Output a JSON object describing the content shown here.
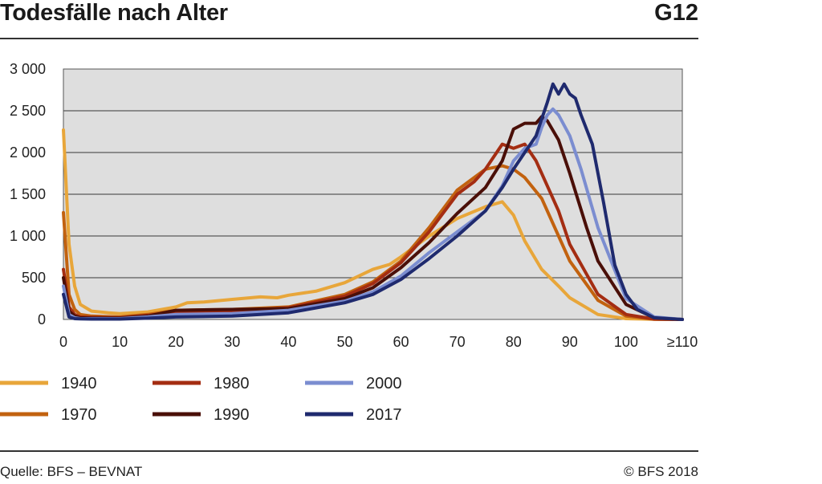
{
  "header": {
    "title": "Todesfälle nach Alter",
    "code": "G12"
  },
  "footer": {
    "source": "Quelle: BFS – BEVNAT",
    "copyright": "© BFS 2018"
  },
  "chart_data": {
    "type": "line",
    "title": "Todesfälle nach Alter",
    "xlabel": "",
    "ylabel": "",
    "xlim": [
      0,
      110
    ],
    "ylim": [
      0,
      3000
    ],
    "grid": true,
    "legend_position": "bottom",
    "x_ticks": [
      "0",
      "10",
      "20",
      "30",
      "40",
      "50",
      "60",
      "70",
      "80",
      "90",
      "100",
      "≥110"
    ],
    "y_ticks": [
      "0",
      "500",
      "1 000",
      "1 500",
      "2 000",
      "2 500",
      "3 000"
    ],
    "series": [
      {
        "name": "1940",
        "color": "#e8a63a",
        "x": [
          0,
          1,
          2,
          3,
          5,
          8,
          10,
          15,
          20,
          22,
          25,
          30,
          35,
          38,
          40,
          45,
          50,
          55,
          58,
          60,
          65,
          70,
          75,
          78,
          80,
          82,
          85,
          88,
          90,
          95,
          100,
          105,
          110
        ],
        "y": [
          2270,
          900,
          400,
          180,
          100,
          80,
          70,
          90,
          150,
          200,
          210,
          240,
          270,
          260,
          290,
          340,
          440,
          600,
          660,
          750,
          1000,
          1210,
          1350,
          1410,
          1250,
          940,
          600,
          400,
          260,
          60,
          10,
          2,
          0
        ]
      },
      {
        "name": "1970",
        "color": "#c2620f",
        "x": [
          0,
          1,
          2,
          3,
          5,
          10,
          15,
          20,
          30,
          40,
          50,
          55,
          60,
          65,
          70,
          75,
          78,
          80,
          82,
          85,
          88,
          90,
          95,
          100,
          105,
          110
        ],
        "y": [
          1280,
          300,
          120,
          60,
          40,
          30,
          60,
          110,
          120,
          150,
          300,
          450,
          700,
          1100,
          1550,
          1800,
          1840,
          1800,
          1700,
          1450,
          1000,
          700,
          230,
          40,
          3,
          0
        ]
      },
      {
        "name": "1980",
        "color": "#a42d12",
        "x": [
          0,
          1,
          2,
          3,
          5,
          10,
          15,
          20,
          30,
          40,
          50,
          55,
          60,
          65,
          70,
          73,
          75,
          78,
          80,
          82,
          84,
          86,
          88,
          90,
          95,
          100,
          105,
          110
        ],
        "y": [
          600,
          150,
          60,
          30,
          25,
          20,
          50,
          90,
          100,
          140,
          280,
          430,
          680,
          1050,
          1500,
          1650,
          1800,
          2100,
          2050,
          2100,
          1900,
          1600,
          1300,
          900,
          300,
          60,
          5,
          0
        ]
      },
      {
        "name": "1990",
        "color": "#4a0f08",
        "x": [
          0,
          1,
          2,
          3,
          5,
          10,
          15,
          20,
          30,
          40,
          50,
          55,
          60,
          65,
          70,
          75,
          78,
          80,
          82,
          84,
          85,
          86,
          88,
          90,
          93,
          95,
          100,
          105,
          110
        ],
        "y": [
          500,
          100,
          40,
          20,
          15,
          15,
          40,
          110,
          120,
          130,
          250,
          380,
          620,
          920,
          1270,
          1580,
          1900,
          2280,
          2350,
          2350,
          2430,
          2380,
          2150,
          1750,
          1100,
          700,
          180,
          20,
          0
        ]
      },
      {
        "name": "2000",
        "color": "#7b8dd0",
        "x": [
          0,
          1,
          2,
          3,
          5,
          10,
          15,
          20,
          30,
          40,
          50,
          55,
          60,
          65,
          70,
          75,
          78,
          80,
          82,
          84,
          85,
          86,
          87,
          88,
          90,
          92,
          95,
          100,
          105,
          110
        ],
        "y": [
          400,
          60,
          20,
          10,
          10,
          10,
          30,
          60,
          70,
          110,
          220,
          330,
          520,
          800,
          1050,
          1300,
          1600,
          1900,
          2050,
          2100,
          2300,
          2450,
          2520,
          2450,
          2200,
          1800,
          1100,
          250,
          30,
          0
        ]
      },
      {
        "name": "2017",
        "color": "#1f2a6e",
        "x": [
          0,
          1,
          2,
          3,
          5,
          10,
          15,
          20,
          30,
          40,
          50,
          55,
          60,
          65,
          70,
          75,
          78,
          80,
          82,
          84,
          85,
          86,
          87,
          88,
          89,
          90,
          91,
          92,
          94,
          96,
          98,
          100,
          102,
          105,
          110
        ],
        "y": [
          300,
          30,
          10,
          8,
          5,
          5,
          15,
          30,
          40,
          80,
          200,
          300,
          480,
          730,
          1000,
          1300,
          1580,
          1800,
          2000,
          2200,
          2400,
          2600,
          2820,
          2700,
          2820,
          2700,
          2650,
          2450,
          2100,
          1400,
          650,
          300,
          120,
          20,
          0
        ]
      }
    ]
  }
}
